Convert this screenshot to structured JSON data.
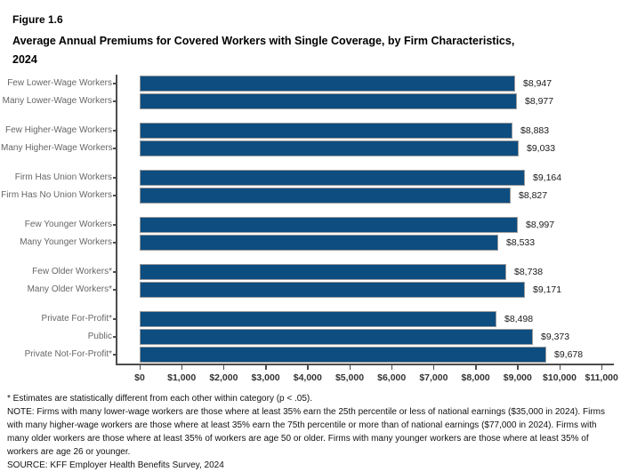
{
  "figure": {
    "label": "Figure 1.6",
    "title": "Average Annual Premiums for Covered Workers with Single Coverage, by Firm Characteristics, 2024"
  },
  "chart_data": {
    "type": "bar",
    "orientation": "horizontal",
    "title": "Average Annual Premiums for Covered Workers with Single Coverage, by Firm Characteristics, 2024",
    "xlim": [
      0,
      11000
    ],
    "x_tick_interval": 1000,
    "x_ticks": [
      "$0",
      "$1,000",
      "$2,000",
      "$3,000",
      "$4,000",
      "$5,000",
      "$6,000",
      "$7,000",
      "$8,000",
      "$9,000",
      "$10,000",
      "$11,000"
    ],
    "bar_color": "#0d4d80",
    "bar_border_color": "#9a9a9a",
    "axis_color": "#4d4d4d",
    "legend": "none",
    "grid": "off",
    "groups": [
      [
        {
          "label": "Few Lower-Wage Workers",
          "value": 8947,
          "display": "$8,947"
        },
        {
          "label": "Many Lower-Wage Workers",
          "value": 8977,
          "display": "$8,977"
        }
      ],
      [
        {
          "label": "Few Higher-Wage Workers",
          "value": 8883,
          "display": "$8,883"
        },
        {
          "label": "Many Higher-Wage Workers",
          "value": 9033,
          "display": "$9,033"
        }
      ],
      [
        {
          "label": "Firm Has Union Workers",
          "value": 9164,
          "display": "$9,164"
        },
        {
          "label": "Firm Has No Union Workers",
          "value": 8827,
          "display": "$8,827"
        }
      ],
      [
        {
          "label": "Few Younger Workers",
          "value": 8997,
          "display": "$8,997"
        },
        {
          "label": "Many Younger Workers",
          "value": 8533,
          "display": "$8,533"
        }
      ],
      [
        {
          "label": "Few Older Workers*",
          "value": 8738,
          "display": "$8,738"
        },
        {
          "label": "Many Older Workers*",
          "value": 9171,
          "display": "$9,171"
        }
      ],
      [
        {
          "label": "Private For-Profit*",
          "value": 8498,
          "display": "$8,498"
        },
        {
          "label": "Public",
          "value": 9373,
          "display": "$9,373"
        },
        {
          "label": "Private Not-For-Profit*",
          "value": 9678,
          "display": "$9,678"
        }
      ]
    ]
  },
  "footnotes": {
    "significance": "* Estimates are statistically different from each other within category (p < .05).",
    "note": "NOTE: Firms with many lower-wage workers are those where at least 35% earn the 25th percentile or less of national earnings ($35,000 in 2024). Firms with many higher-wage workers are those where at least 35% earn the 75th percentile or more than of national earnings ($77,000 in 2024). Firms with many older workers are those where at least 35% of workers are age 50 or older. Firms with many younger workers are those where at least 35% of workers are age 26 or younger.",
    "source": "SOURCE: KFF Employer Health Benefits Survey, 2024"
  }
}
